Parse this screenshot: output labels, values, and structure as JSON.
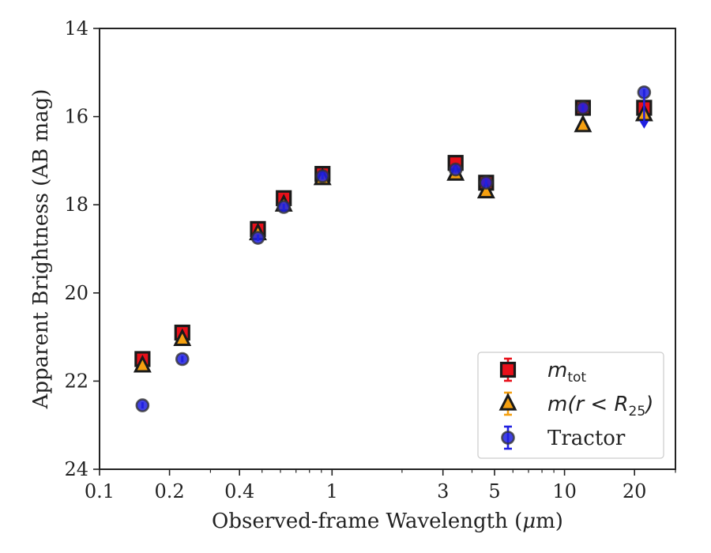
{
  "chart_data": {
    "type": "scatter",
    "xlabel": "Observed-frame Wavelength (μm)",
    "xlabel_parts": [
      "Observed-frame Wavelength (",
      "μ",
      "m)"
    ],
    "ylabel": "Apparent Brightness (AB mag)",
    "xscale": "log",
    "xlim": [
      0.1,
      30
    ],
    "ylim": [
      24,
      14
    ],
    "y_inverted": true,
    "grid": false,
    "legend_position": "bottom-right",
    "xticks": [
      0.1,
      0.2,
      0.4,
      1,
      3,
      5,
      10,
      20
    ],
    "xtick_labels": [
      "0.1",
      "0.2",
      "0.4",
      "1",
      "3",
      "5",
      "10",
      "20"
    ],
    "yticks": [
      14,
      16,
      18,
      20,
      22,
      24
    ],
    "ytick_labels": [
      "14",
      "16",
      "18",
      "20",
      "22",
      "24"
    ],
    "series": [
      {
        "name": "m_tot",
        "legend_label": {
          "main": "m",
          "sub": "tot",
          "rest": ""
        },
        "marker": "square",
        "color": "#e8101a",
        "errorbar_color": "#e8101a",
        "x": [
          0.153,
          0.227,
          0.48,
          0.62,
          0.91,
          3.4,
          4.6,
          12.0,
          22.0
        ],
        "y": [
          21.5,
          20.9,
          18.55,
          17.85,
          17.3,
          17.05,
          17.5,
          15.8,
          15.8
        ]
      },
      {
        "name": "m(r < R25)",
        "legend_label": {
          "main": "m(r < R",
          "sub": "25",
          "rest": ")"
        },
        "marker": "triangle",
        "color": "#f5a010",
        "errorbar_color": "#f5a010",
        "x": [
          0.153,
          0.227,
          0.48,
          0.62,
          0.91,
          3.4,
          4.6,
          12.0,
          22.0
        ],
        "y": [
          21.65,
          21.05,
          18.65,
          18.0,
          17.4,
          17.3,
          17.7,
          16.2,
          15.95
        ]
      },
      {
        "name": "Tractor",
        "legend_label": {
          "main": "Tractor",
          "sub": "",
          "rest": ""
        },
        "marker": "circle",
        "color": "#2020e0",
        "errorbar_color": "#2020e0",
        "x": [
          0.153,
          0.227,
          0.48,
          0.62,
          0.91,
          3.4,
          4.6,
          12.0,
          22.0
        ],
        "y": [
          22.55,
          21.5,
          18.75,
          18.05,
          17.35,
          17.2,
          17.5,
          15.8,
          15.45
        ],
        "upper_limit_index": 8
      }
    ]
  }
}
